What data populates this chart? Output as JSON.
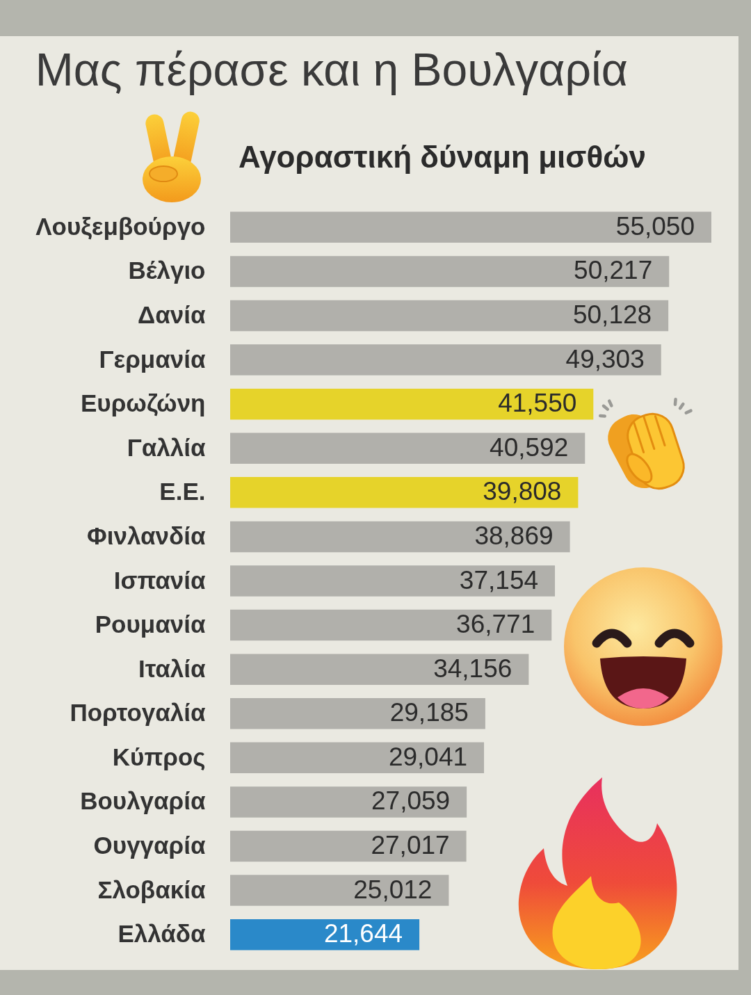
{
  "chart_data": {
    "type": "bar",
    "orientation": "horizontal",
    "title": "Μας πέρασε και η Βουλγαρία",
    "subtitle": "Αγοραστική δύναμη μισθών",
    "categories": [
      "Λουξεμβούργο",
      "Βέλγιο",
      "Δανία",
      "Γερμανία",
      "Ευρωζώνη",
      "Γαλλία",
      "Ε.Ε.",
      "Φινλανδία",
      "Ισπανία",
      "Ρουμανία",
      "Ιταλία",
      "Πορτογαλία",
      "Κύπρος",
      "Βουλγαρία",
      "Ουγγαρία",
      "Σλοβακία",
      "Ελλάδα"
    ],
    "values": [
      55050,
      50217,
      50128,
      49303,
      41550,
      40592,
      39808,
      38869,
      37154,
      36771,
      34156,
      29185,
      29041,
      27059,
      27017,
      25012,
      21644
    ],
    "value_labels": [
      "55,050",
      "50,217",
      "50,128",
      "49,303",
      "41,550",
      "40,592",
      "39,808",
      "38,869",
      "37,154",
      "36,771",
      "34,156",
      "29,185",
      "29,041",
      "27,059",
      "27,017",
      "25,012",
      "21,644"
    ],
    "colors": [
      "#b1b0ab",
      "#b1b0ab",
      "#b1b0ab",
      "#b1b0ab",
      "#e6d32a",
      "#b1b0ab",
      "#e6d32a",
      "#b1b0ab",
      "#b1b0ab",
      "#b1b0ab",
      "#b1b0ab",
      "#b1b0ab",
      "#b1b0ab",
      "#b1b0ab",
      "#b1b0ab",
      "#b1b0ab",
      "#2a89c9"
    ],
    "tick_labels": "y"
  }
}
